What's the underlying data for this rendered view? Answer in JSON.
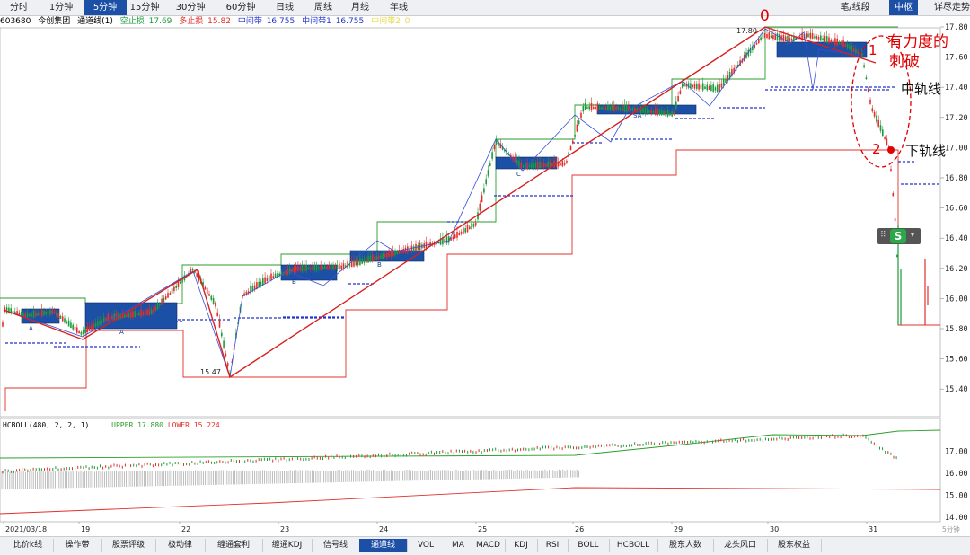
{
  "toolbar": {
    "timeframes": [
      "分时",
      "1分钟",
      "5分钟",
      "15分钟",
      "30分钟",
      "60分钟",
      "日线",
      "周线",
      "月线",
      "年线"
    ],
    "active_timeframe": "5分钟",
    "right_tabs": [
      "笔/线段",
      "中枢",
      "详尽走势"
    ],
    "active_right_tab": "中枢"
  },
  "info": {
    "code": "603680",
    "name": "今创集团",
    "indicator": "通道线(1)",
    "stop_short_label": "空止损",
    "stop_short_value": "17.69",
    "stop_long_label": "多止损",
    "stop_long_value": "15.82",
    "mid_band_label": "中间带",
    "mid_band_value": "16.755",
    "mid_band1_label": "中间带1",
    "mid_band1_value": "16.755",
    "mid_band2_label": "中间带2",
    "mid_band2_value": "0"
  },
  "price_axis": [
    "17.80",
    "17.60",
    "17.40",
    "17.20",
    "17.00",
    "16.80",
    "16.60",
    "16.40",
    "16.20",
    "16.00",
    "15.80",
    "15.60",
    "15.40"
  ],
  "indicator_axis": [
    "17.00",
    "16.00",
    "15.00",
    "14.00"
  ],
  "date_axis": [
    "2021/03/18",
    "19",
    "22",
    "23",
    "24",
    "25",
    "26",
    "29",
    "30",
    "31"
  ],
  "date_axis_unit": "5分钟",
  "chart_labels": {
    "high": "17.80",
    "low": "15.47"
  },
  "indicator_panel": {
    "name": "HCBOLL",
    "params": "(480, 2, 2, 1)",
    "upper_label": "UPPER",
    "upper_value": "17.880",
    "lower_label": "LOWER",
    "lower_value": "15.224"
  },
  "annotations": {
    "point0": "0",
    "point1": "1",
    "point2": "2",
    "strong_break_line1": "有力度的",
    "strong_break_line2": "刺破",
    "middle_rail": "中轨线",
    "lower_rail": "下轨线"
  },
  "pivot_labels": [
    "A",
    "A",
    "B",
    "B",
    "C",
    "SA"
  ],
  "widget": {
    "label": "S"
  },
  "bottom_tabs": [
    "比价k线",
    "操作带",
    "股票评级",
    "极动律",
    "缠通套利",
    "缠通KDJ",
    "信号线",
    "通道线",
    "VOL",
    "MA",
    "MACD",
    "KDJ",
    "RSI",
    "BOLL",
    "HCBOLL",
    "股东人数",
    "龙头风口",
    "股东权益"
  ],
  "active_bottom_tab": "通道线",
  "colors": {
    "accent": "#1c4fa6",
    "up_candle": "#e0302b",
    "down_candle": "#1d9a3c",
    "upper_channel": "#2a9d2a",
    "lower_channel": "#e0302b",
    "middle_band": "#2233cc",
    "pivot_box": "#1c4fa6",
    "annotation": "#e00000"
  }
}
